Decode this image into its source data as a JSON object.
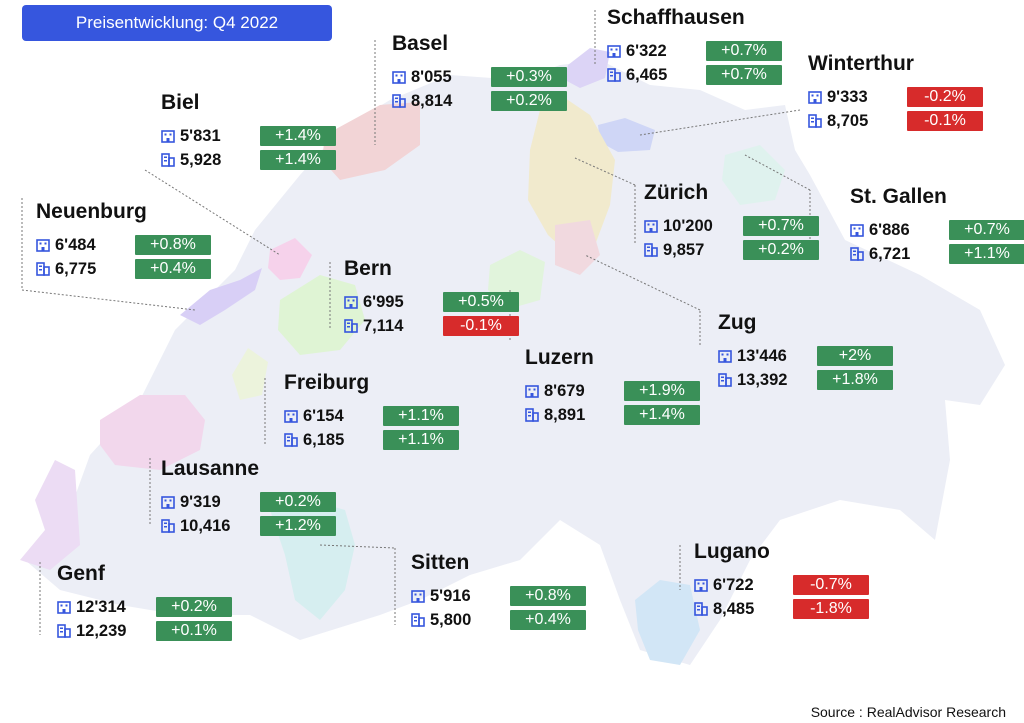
{
  "title": "Preisentwicklung: Q4 2022",
  "source": "Source : RealAdvisor Research",
  "colors": {
    "positive": "#3a9058",
    "negative": "#d72b2b",
    "accent": "#3656de"
  },
  "cities": [
    {
      "name": "Schaffhausen",
      "apartment_price": "6'322",
      "apartment_change": "+0.7%",
      "house_price": "6,465",
      "house_change": "+0.7%"
    },
    {
      "name": "Basel",
      "apartment_price": "8'055",
      "apartment_change": "+0.3%",
      "house_price": "8,814",
      "house_change": "+0.2%"
    },
    {
      "name": "Winterthur",
      "apartment_price": "9'333",
      "apartment_change": "-0.2%",
      "house_price": "8,705",
      "house_change": "-0.1%"
    },
    {
      "name": "Biel",
      "apartment_price": "5'831",
      "apartment_change": "+1.4%",
      "house_price": "5,928",
      "house_change": "+1.4%"
    },
    {
      "name": "Zürich",
      "apartment_price": "10'200",
      "apartment_change": "+0.7%",
      "house_price": "9,857",
      "house_change": "+0.2%"
    },
    {
      "name": "St. Gallen",
      "apartment_price": "6'886",
      "apartment_change": "+0.7%",
      "house_price": "6,721",
      "house_change": "+1.1%"
    },
    {
      "name": "Neuenburg",
      "apartment_price": "6'484",
      "apartment_change": "+0.8%",
      "house_price": "6,775",
      "house_change": "+0.4%"
    },
    {
      "name": "Bern",
      "apartment_price": "6'995",
      "apartment_change": "+0.5%",
      "house_price": "7,114",
      "house_change": "-0.1%"
    },
    {
      "name": "Zug",
      "apartment_price": "13'446",
      "apartment_change": "+2%",
      "house_price": "13,392",
      "house_change": "+1.8%"
    },
    {
      "name": "Luzern",
      "apartment_price": "8'679",
      "apartment_change": "+1.9%",
      "house_price": "8,891",
      "house_change": "+1.4%"
    },
    {
      "name": "Freiburg",
      "apartment_price": "6'154",
      "apartment_change": "+1.1%",
      "house_price": "6,185",
      "house_change": "+1.1%"
    },
    {
      "name": "Lausanne",
      "apartment_price": "9'319",
      "apartment_change": "+0.2%",
      "house_price": "10,416",
      "house_change": "+1.2%"
    },
    {
      "name": "Sitten",
      "apartment_price": "5'916",
      "apartment_change": "+0.8%",
      "house_price": "5,800",
      "house_change": "+0.4%"
    },
    {
      "name": "Lugano",
      "apartment_price": "6'722",
      "apartment_change": "-0.7%",
      "house_price": "8,485",
      "house_change": "-1.8%"
    },
    {
      "name": "Genf",
      "apartment_price": "12'314",
      "apartment_change": "+0.2%",
      "house_price": "12,239",
      "house_change": "+0.1%"
    }
  ]
}
